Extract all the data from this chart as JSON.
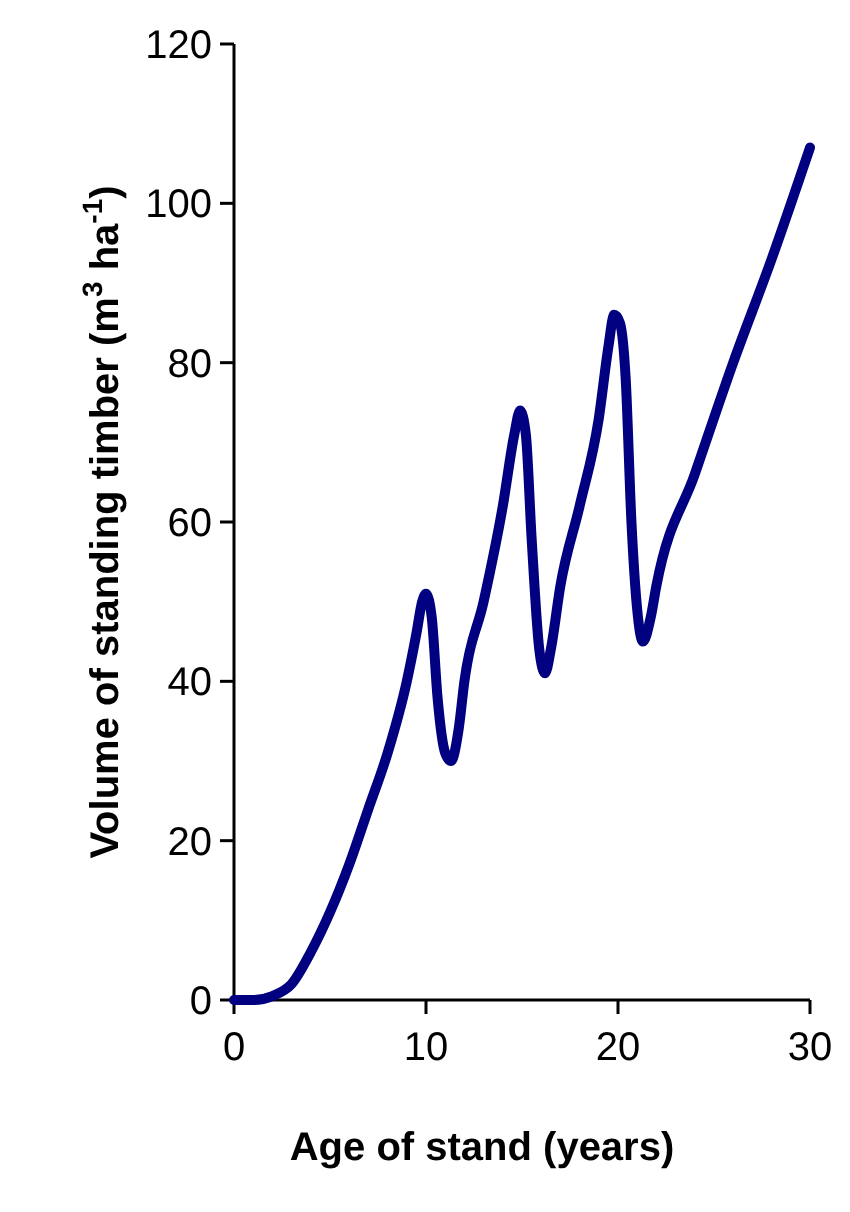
{
  "chart_data": {
    "type": "line",
    "xlabel": "Age of stand (years)",
    "ylabel": "Volume of standing timber (m$^{3}$ ha$^{-1}$)",
    "xlim": [
      0,
      30
    ],
    "xticks": [
      0,
      10,
      20,
      30
    ],
    "ylim": [
      0,
      120
    ],
    "yticks": [
      0,
      20,
      40,
      60,
      80,
      100,
      120
    ],
    "grid": false,
    "marker": "none",
    "line_style": "solid",
    "series": [
      {
        "color": "#000080",
        "x": [
          0,
          1,
          2,
          3,
          4,
          5,
          6,
          7,
          8,
          9,
          9.5,
          9.8,
          10,
          10.3,
          10.6,
          11,
          11.3,
          11.7,
          12,
          13,
          14,
          14.6,
          14.9,
          15.2,
          15.5,
          15.9,
          16.2,
          16.5,
          17,
          18,
          19,
          19.5,
          19.8,
          20.1,
          20.4,
          20.7,
          21,
          21.3,
          21.7,
          22,
          24,
          26,
          28,
          30
        ],
        "values": [
          0,
          0,
          0.5,
          2,
          6,
          11,
          17,
          24,
          31,
          40,
          46,
          50,
          51,
          48,
          38,
          31,
          30,
          34,
          40,
          50,
          62,
          71,
          74,
          71,
          58,
          44,
          41,
          44,
          52,
          62,
          73,
          82,
          86,
          85,
          78,
          60,
          49,
          45,
          48,
          52,
          66,
          80,
          93,
          107
        ]
      }
    ]
  }
}
